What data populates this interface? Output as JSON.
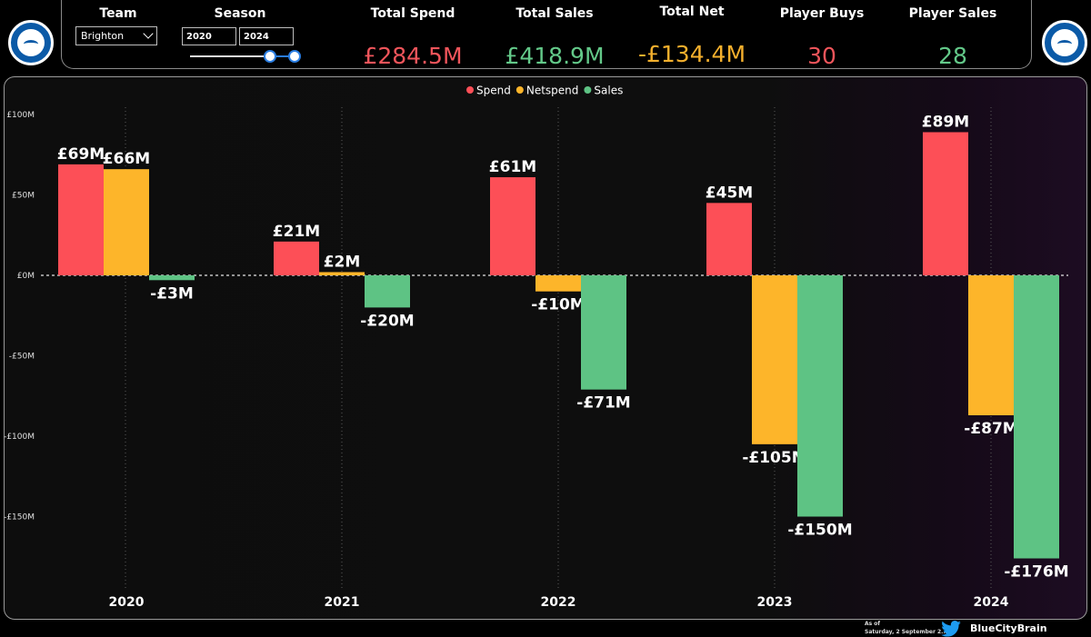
{
  "header": {
    "team_label": "Team",
    "team_value": "Brighton",
    "season_label": "Season",
    "season_from": "2020",
    "season_to": "2024",
    "kpis": [
      {
        "label": "Total Spend",
        "value": "£284.5M",
        "color": "#f0555b"
      },
      {
        "label": "Total Sales",
        "value": "£418.9M",
        "color": "#63c989"
      },
      {
        "label": "Total Net",
        "value": "-£134.4M",
        "color": "#f5b02d"
      },
      {
        "label": "Player Buys",
        "value": "30",
        "color": "#f0555b"
      },
      {
        "label": "Player Sales",
        "value": "28",
        "color": "#63c989"
      }
    ]
  },
  "chart_data": {
    "type": "bar",
    "categories": [
      "2020",
      "2021",
      "2022",
      "2023",
      "2024"
    ],
    "series": [
      {
        "name": "Spend",
        "color": "#fd4f57",
        "values": [
          69,
          21,
          61,
          45,
          89
        ],
        "labels": [
          "£69M",
          "£21M",
          "£61M",
          "£45M",
          "£89M"
        ]
      },
      {
        "name": "Netspend",
        "color": "#fdb52a",
        "values": [
          66,
          2,
          -10,
          -105,
          -87
        ],
        "labels": [
          "£66M",
          "£2M",
          "-£10M",
          "-£105M",
          "-£87M"
        ]
      },
      {
        "name": "Sales",
        "color": "#5ec384",
        "values": [
          -3,
          -20,
          -71,
          -150,
          -176
        ],
        "labels": [
          "-£3M",
          "-£20M",
          "-£71M",
          "-£150M",
          "-£176M"
        ]
      }
    ],
    "y_ticks": [
      100,
      50,
      0,
      -50,
      -100,
      -150
    ],
    "y_tick_labels": [
      "£100M",
      "£50M",
      "£0M",
      "-£50M",
      "-£100M",
      "-£150M"
    ],
    "ylim": [
      -180,
      100
    ],
    "legend_position": "top-center",
    "xlabel": "",
    "ylabel": ""
  },
  "footer": {
    "as_of_label": "As of",
    "as_of_date": "Saturday, 2 September 2...",
    "handle": "BlueCityBrain"
  }
}
